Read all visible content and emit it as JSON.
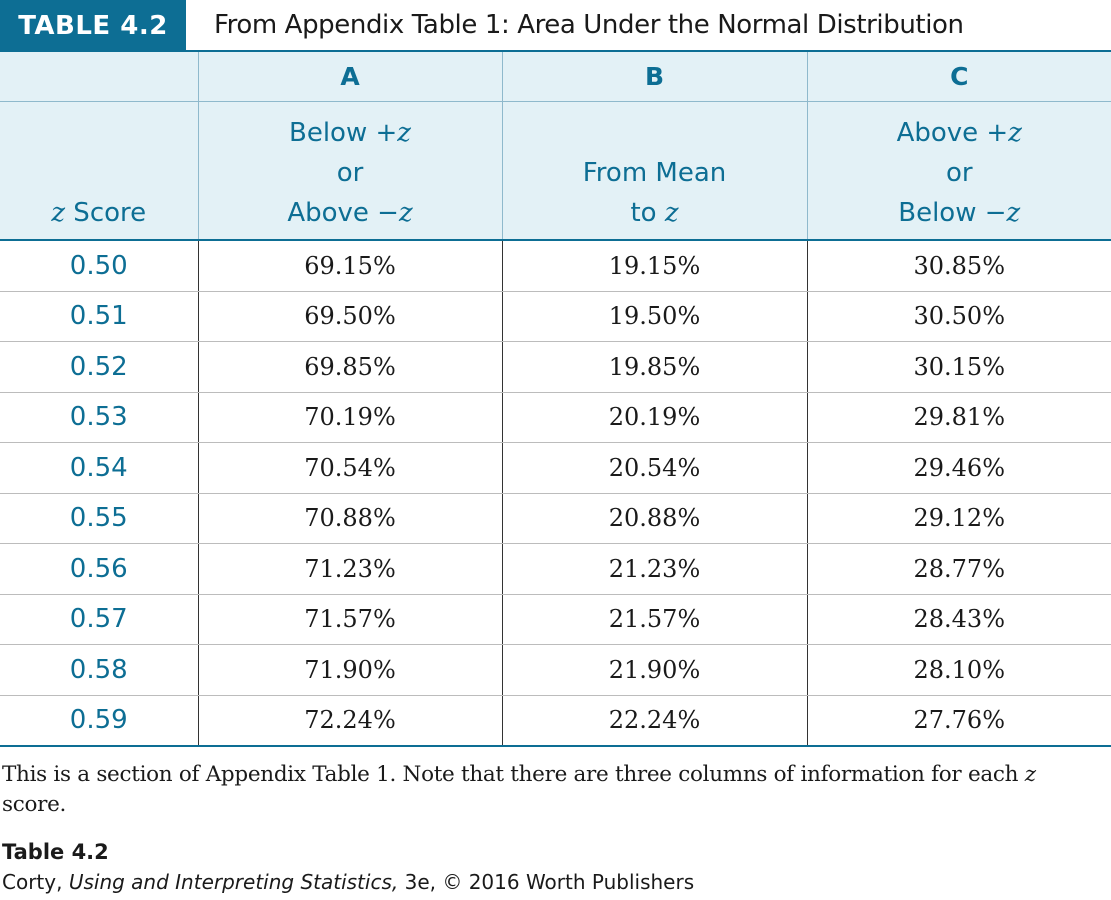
{
  "header": {
    "label": "TABLE 4.2",
    "title": "From Appendix Table 1: Area Under the Normal Distribution"
  },
  "table": {
    "column_letters": [
      "",
      "A",
      "B",
      "C"
    ],
    "column_heads": [
      {
        "lines": [
          {
            "pre": "",
            "ital": "z",
            "post": " Score"
          }
        ]
      },
      {
        "lines": [
          {
            "pre": "Below +",
            "ital": "z",
            "post": ""
          },
          {
            "pre": "or",
            "ital": "",
            "post": ""
          },
          {
            "pre": "Above −",
            "ital": "z",
            "post": ""
          }
        ]
      },
      {
        "lines": [
          {
            "pre": "From Mean",
            "ital": "",
            "post": ""
          },
          {
            "pre": "to ",
            "ital": "z",
            "post": ""
          }
        ]
      },
      {
        "lines": [
          {
            "pre": "Above +",
            "ital": "z",
            "post": ""
          },
          {
            "pre": "or",
            "ital": "",
            "post": ""
          },
          {
            "pre": "Below −",
            "ital": "z",
            "post": ""
          }
        ]
      }
    ],
    "rows": [
      [
        "0.50",
        "69.15%",
        "19.15%",
        "30.85%"
      ],
      [
        "0.51",
        "69.50%",
        "19.50%",
        "30.50%"
      ],
      [
        "0.52",
        "69.85%",
        "19.85%",
        "30.15%"
      ],
      [
        "0.53",
        "70.19%",
        "20.19%",
        "29.81%"
      ],
      [
        "0.54",
        "70.54%",
        "20.54%",
        "29.46%"
      ],
      [
        "0.55",
        "70.88%",
        "20.88%",
        "29.12%"
      ],
      [
        "0.56",
        "71.23%",
        "21.23%",
        "28.77%"
      ],
      [
        "0.57",
        "71.57%",
        "21.57%",
        "28.43%"
      ],
      [
        "0.58",
        "71.90%",
        "21.90%",
        "28.10%"
      ],
      [
        "0.59",
        "72.24%",
        "22.24%",
        "27.76%"
      ]
    ]
  },
  "caption": {
    "pre": "This is a section of Appendix Table 1. Note that there are three columns of information for each ",
    "ital": "z",
    "post": " score."
  },
  "credit": {
    "label": "Table 4.2",
    "author": "Corty, ",
    "book": "Using and Interpreting Statistics,",
    "rest": " 3e, © 2016 Worth Publishers"
  },
  "colors": {
    "accent": "#0d6e94",
    "header_fill": "#e3f1f6",
    "text": "#1a1a1a"
  }
}
